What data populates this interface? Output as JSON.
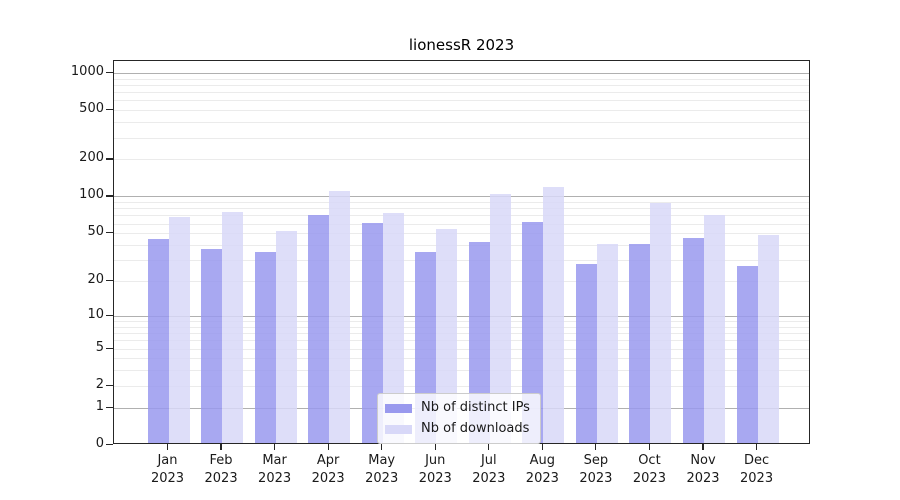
{
  "title": "lionessR 2023",
  "legend": {
    "items": [
      {
        "label": "Nb of distinct IPs",
        "color": "#9999ee"
      },
      {
        "label": "Nb of downloads",
        "color": "#d8d8f8"
      }
    ],
    "position": "lower center"
  },
  "chart_data": {
    "type": "bar",
    "title": "lionessR 2023",
    "categories": [
      "Jan 2023",
      "Feb 2023",
      "Mar 2023",
      "Apr 2023",
      "May 2023",
      "Jun 2023",
      "Jul 2023",
      "Aug 2023",
      "Sep 2023",
      "Oct 2023",
      "Nov 2023",
      "Dec 2023"
    ],
    "series": [
      {
        "name": "Nb of distinct IPs",
        "color": "#9999ee",
        "values": [
          43,
          36,
          34,
          68,
          59,
          34,
          41,
          60,
          27,
          39,
          44,
          26
        ]
      },
      {
        "name": "Nb of downloads",
        "color": "#d8d8f8",
        "values": [
          66,
          72,
          50,
          106,
          71,
          52,
          101,
          116,
          39,
          85,
          68,
          47
        ]
      }
    ],
    "xlabel": "",
    "ylabel": "",
    "yscale": "log10(1+x)",
    "ylim": [
      0,
      1240
    ],
    "yticks": [
      0,
      1,
      2,
      5,
      10,
      20,
      50,
      100,
      200,
      500,
      1000
    ],
    "major_gridlines": [
      1,
      10,
      100,
      1000
    ],
    "minor_gridlines": [
      2,
      3,
      4,
      5,
      6,
      7,
      8,
      9,
      20,
      30,
      40,
      50,
      60,
      70,
      80,
      90,
      200,
      300,
      400,
      500,
      600,
      700,
      800,
      900
    ],
    "grid": true,
    "legend_position": "lower center"
  }
}
